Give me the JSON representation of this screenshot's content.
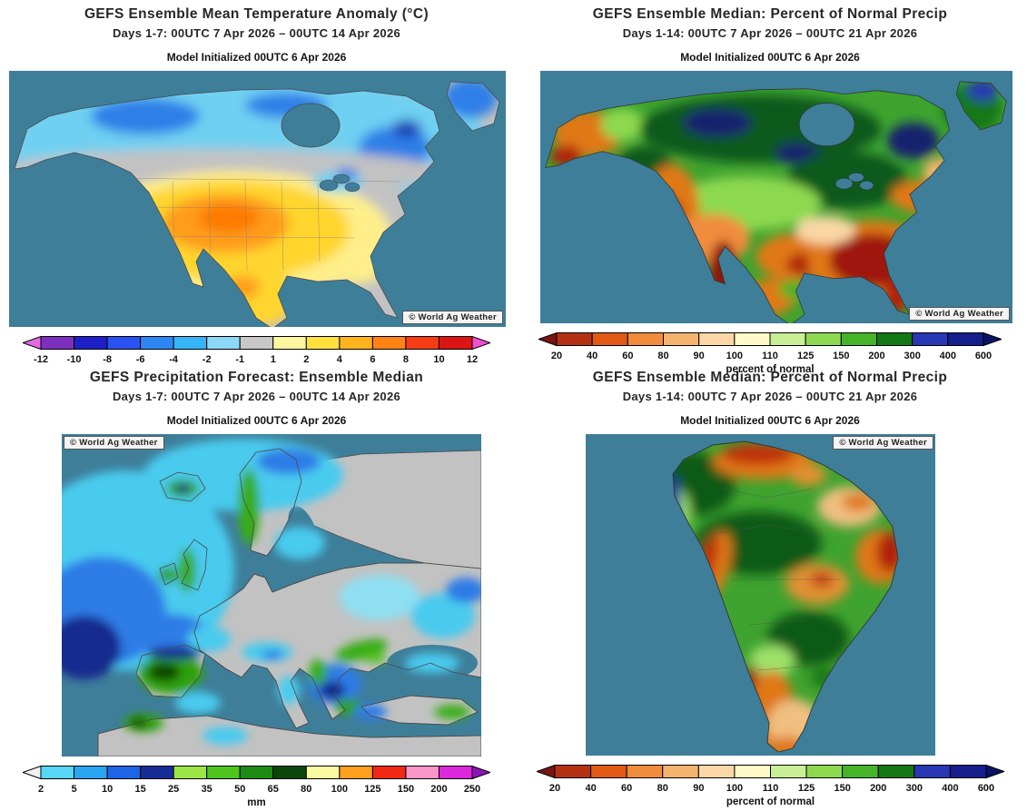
{
  "colors": {
    "ocean": "#3E7E99",
    "land_gray": "#C2C2C2",
    "land_green": "#3FA32F",
    "title": "#26262C"
  },
  "panels": [
    {
      "title": "GEFS Ensemble Mean Temperature Anomaly (°C)",
      "subtitle": "Days 1-7: 00UTC 7 Apr 2026 – 00UTC 14 Apr 2026",
      "init": "Model Initialized 00UTC 6 Apr 2026",
      "watermark": "© World Ag Weather",
      "colorbar": {
        "ticks": [
          "-12",
          "-10",
          "-8",
          "-6",
          "-4",
          "-2",
          "-1",
          "1",
          "2",
          "4",
          "6",
          "8",
          "10",
          "12"
        ],
        "colors": [
          "#E36AE3",
          "#7D2FBE",
          "#1F1FC8",
          "#2A52F0",
          "#2E86F5",
          "#35B5F5",
          "#8CD9F7",
          "#C8C8C8",
          "#FFF6A0",
          "#FFE03C",
          "#FFB41E",
          "#FF8214",
          "#F53C14",
          "#DC1414",
          "#F04FD2"
        ],
        "unit": ""
      }
    },
    {
      "title": "GEFS Ensemble Median: Percent of Normal Precip",
      "subtitle": "Days 1-14: 00UTC 7 Apr 2026 – 00UTC 21 Apr 2026",
      "init": "Model Initialized 00UTC 6 Apr 2026",
      "watermark": "© World Ag Weather",
      "colorbar": {
        "ticks": [
          "20",
          "40",
          "60",
          "80",
          "90",
          "100",
          "110",
          "125",
          "150",
          "200",
          "300",
          "400",
          "600"
        ],
        "colors": [
          "#781414",
          "#B43214",
          "#E05A14",
          "#F08C3C",
          "#F5B46E",
          "#FAD7A5",
          "#FFFAC8",
          "#C8EE96",
          "#8CD950",
          "#46B428",
          "#147814",
          "#2837B4",
          "#141E8C",
          "#0A1464"
        ],
        "unit": "percent of normal"
      }
    },
    {
      "title": "GEFS Precipitation Forecast: Ensemble Median",
      "subtitle": "Days 1-7: 00UTC 7 Apr 2026 – 00UTC 14 Apr 2026",
      "init": "Model Initialized 00UTC 6 Apr 2026",
      "watermark": "© World Ag Weather",
      "colorbar": {
        "ticks": [
          "2",
          "5",
          "10",
          "15",
          "25",
          "35",
          "50",
          "65",
          "80",
          "100",
          "125",
          "150",
          "200",
          "250"
        ],
        "colors": [
          "#F0F0F0",
          "#55D7F5",
          "#2BA5F0",
          "#1E64E6",
          "#162D96",
          "#9BE646",
          "#50C31E",
          "#1E8C14",
          "#0B460B",
          "#FAFAA0",
          "#FFA01E",
          "#F02814",
          "#FA96C8",
          "#DC28DC",
          "#8C14B4"
        ],
        "unit": "mm"
      }
    },
    {
      "title": "GEFS Ensemble Median: Percent of Normal Precip",
      "subtitle": "Days 1-14: 00UTC 7 Apr 2026 – 00UTC 21 Apr 2026",
      "init": "Model Initialized 00UTC 6 Apr 2026",
      "watermark": "© World Ag Weather",
      "colorbar": {
        "ticks": [
          "20",
          "40",
          "60",
          "80",
          "90",
          "100",
          "110",
          "125",
          "150",
          "200",
          "300",
          "400",
          "600"
        ],
        "colors": [
          "#781414",
          "#B43214",
          "#E05A14",
          "#F08C3C",
          "#F5B46E",
          "#FAD7A5",
          "#FFFAC8",
          "#C8EE96",
          "#8CD950",
          "#46B428",
          "#147814",
          "#2837B4",
          "#141E8C",
          "#0A1464"
        ],
        "unit": "percent of normal"
      }
    }
  ]
}
